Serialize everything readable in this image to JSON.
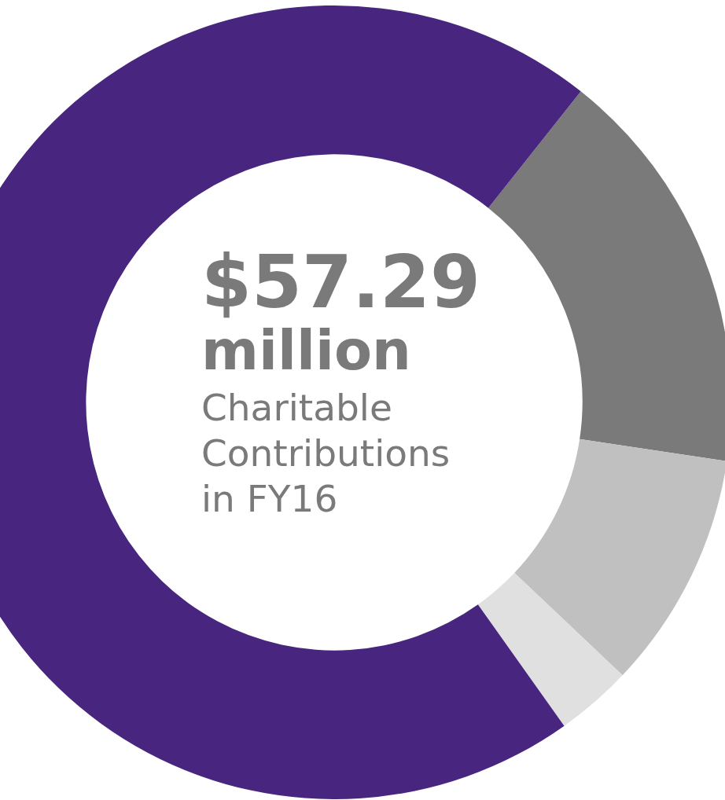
{
  "chart_data": {
    "type": "donut",
    "categories": [
      null,
      null,
      null,
      null
    ],
    "values": [
      16.7,
      9.7,
      3.1,
      70.5
    ],
    "colors": [
      "#7a7a7a",
      "#c0c0c0",
      "#e0e0e0",
      "#48267f"
    ],
    "legend": false,
    "annotations": [
      "$57.29",
      "million",
      "Charitable Contributions in FY16"
    ]
  }
}
